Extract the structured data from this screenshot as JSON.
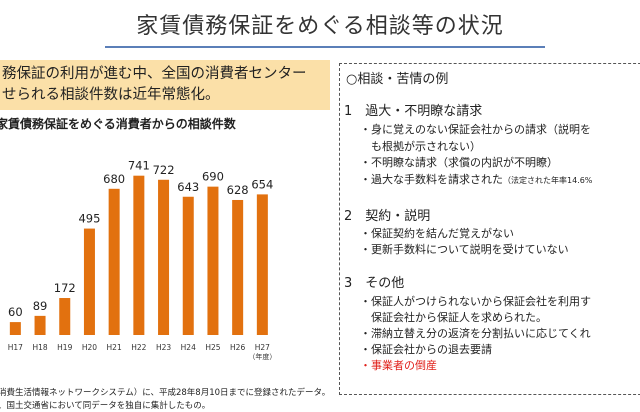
{
  "title": "家賃債務保証をめぐる相談等の状況",
  "callout": {
    "line1": "務保証の利用が進む中、全国の消費者センター",
    "line2": "せられる相談件数は近年常態化。"
  },
  "chart_title": "家賃債務保証をめぐる消費者からの相談件数",
  "chart_data": {
    "type": "bar",
    "title": "家賃債務保証をめぐる消費者からの相談件数",
    "categories": [
      "H17",
      "H18",
      "H19",
      "H20",
      "H21",
      "H22",
      "H23",
      "H24",
      "H25",
      "H26",
      "H27"
    ],
    "values": [
      60,
      89,
      172,
      495,
      680,
      741,
      722,
      643,
      690,
      628,
      654
    ],
    "x_unit": "（年度）",
    "ylim": [
      0,
      800
    ],
    "color": "#e2710f"
  },
  "footnotes": {
    "line1": "消費生活情報ネットワークシステム）に、平成28年8月10日までに登録されたデータ。",
    "line2": "、国土交通省において同データを独自に集計したもの。"
  },
  "panel": {
    "heading": "○相談・苦情の例",
    "sections": [
      {
        "number": "1",
        "title": "過大・不明瞭な請求",
        "items": [
          "・身に覚えのない保証会社からの請求（説明を",
          "　も根拠が示されない）",
          "・不明瞭な請求（求償の内訳が不明瞭）",
          "・過大な手数料を請求された"
        ],
        "note": "（法定された年率14.6%"
      },
      {
        "number": "2",
        "title": "契約・説明",
        "items": [
          "・保証契約を結んだ覚えがない",
          "・更新手数料について説明を受けていない"
        ]
      },
      {
        "number": "3",
        "title": "その他",
        "items": [
          "・保証人がつけられないから保証会社を利用す",
          "　保証会社から保証人を求められた。",
          "・滞納立替え分の返済を分割払いに応じてくれ",
          "・保証会社からの退去要請"
        ],
        "highlight": "・事業者の倒産",
        "highlight_color": "#e0201a"
      }
    ]
  }
}
